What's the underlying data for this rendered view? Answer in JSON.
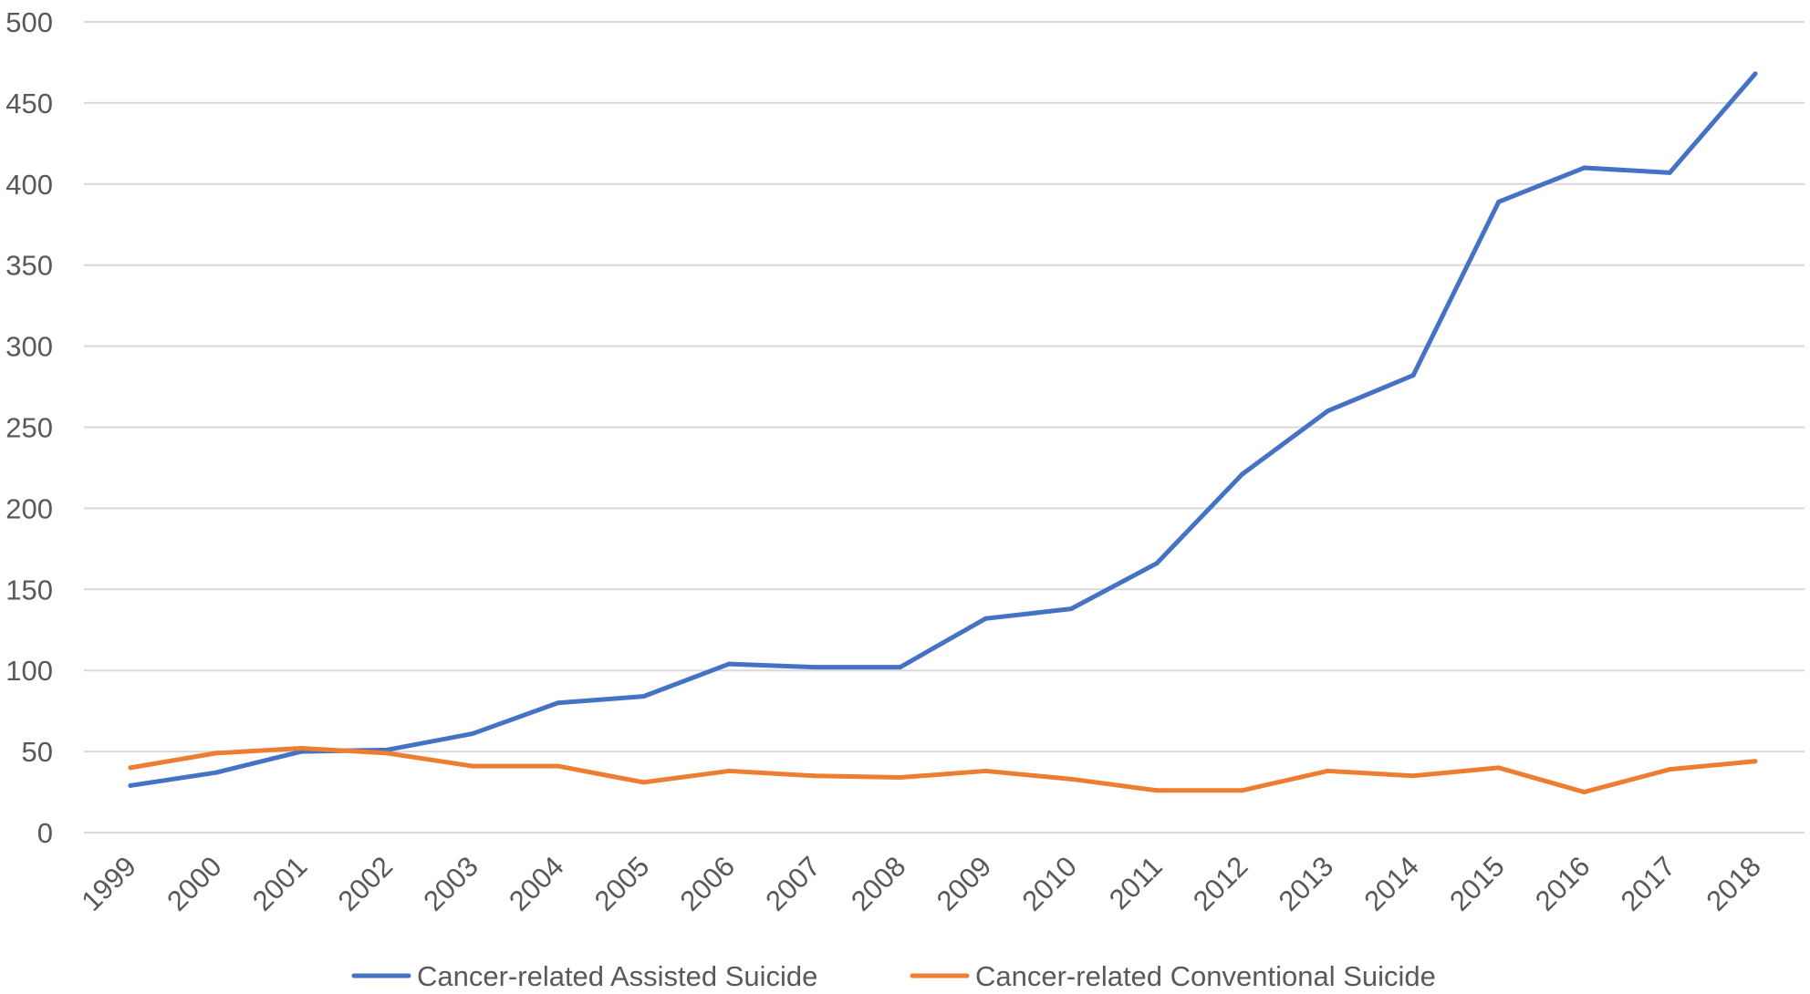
{
  "chart_data": {
    "type": "line",
    "title": "",
    "xlabel": "",
    "ylabel": "",
    "categories": [
      "1999",
      "2000",
      "2001",
      "2002",
      "2003",
      "2004",
      "2005",
      "2006",
      "2007",
      "2008",
      "2009",
      "2010",
      "2011",
      "2012",
      "2013",
      "2014",
      "2015",
      "2016",
      "2017",
      "2018"
    ],
    "ylim": [
      0,
      500
    ],
    "yticks": [
      0,
      50,
      100,
      150,
      200,
      250,
      300,
      350,
      400,
      450,
      500
    ],
    "grid": "horizontal",
    "legend_position": "bottom",
    "series": [
      {
        "name": "Cancer-related Assisted Suicide",
        "color": "#4472C4",
        "values": [
          29,
          37,
          50,
          51,
          61,
          80,
          84,
          104,
          102,
          102,
          132,
          138,
          166,
          221,
          260,
          282,
          389,
          410,
          407,
          468
        ]
      },
      {
        "name": "Cancer-related Conventional Suicide",
        "color": "#ED7D31",
        "values": [
          40,
          49,
          52,
          49,
          41,
          41,
          31,
          38,
          35,
          34,
          38,
          33,
          26,
          26,
          38,
          35,
          40,
          25,
          39,
          44
        ]
      }
    ]
  },
  "colors": {
    "gridline": "#D9D9D9",
    "text": "#595959"
  }
}
